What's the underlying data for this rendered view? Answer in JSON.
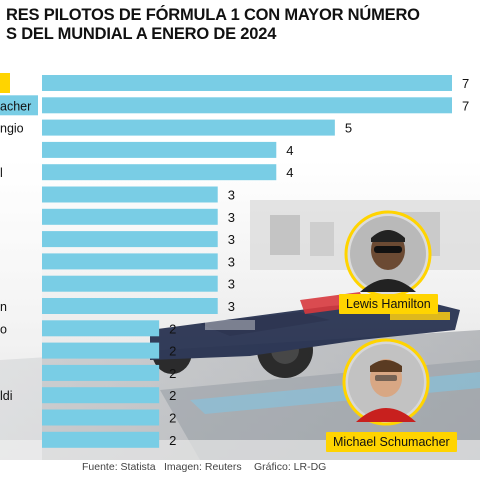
{
  "title": {
    "line1": "RES PILOTOS DE FÓRMULA 1 CON MAYOR NÚMERO",
    "line2": "S DEL MUNDIAL A ENERO DE 2024"
  },
  "chart_data": {
    "type": "bar",
    "orientation": "horizontal",
    "categories": [
      "",
      "acher",
      "ngio",
      "",
      "l",
      "",
      "",
      "",
      "",
      "",
      "n",
      "o",
      "",
      "",
      "ldi",
      "",
      ""
    ],
    "values": [
      7,
      7,
      5,
      4,
      4,
      3,
      3,
      3,
      3,
      3,
      3,
      2,
      2,
      2,
      2,
      2,
      2
    ],
    "value_labels": [
      "7",
      "7",
      "5",
      "4",
      "4",
      "3",
      "3",
      "3",
      "3",
      "3",
      "3",
      "2",
      "2",
      "2",
      "2",
      "2",
      "2"
    ],
    "xlim": [
      0,
      7
    ],
    "grid": false,
    "bar_color": "#79cde5"
  },
  "drivers": [
    {
      "name": "Lewis Hamilton"
    },
    {
      "name": "Michael Schumacher"
    }
  ],
  "footer": {
    "source": "Fuente: Statista",
    "image": "Imagen: Reuters",
    "graphic": "Gráfico: LR-DG"
  },
  "colors": {
    "bar": "#79cde5",
    "label_badge": "#ffd400",
    "first_bar_badge": "#ffd400",
    "second_bar_badge": "#79cde5"
  }
}
